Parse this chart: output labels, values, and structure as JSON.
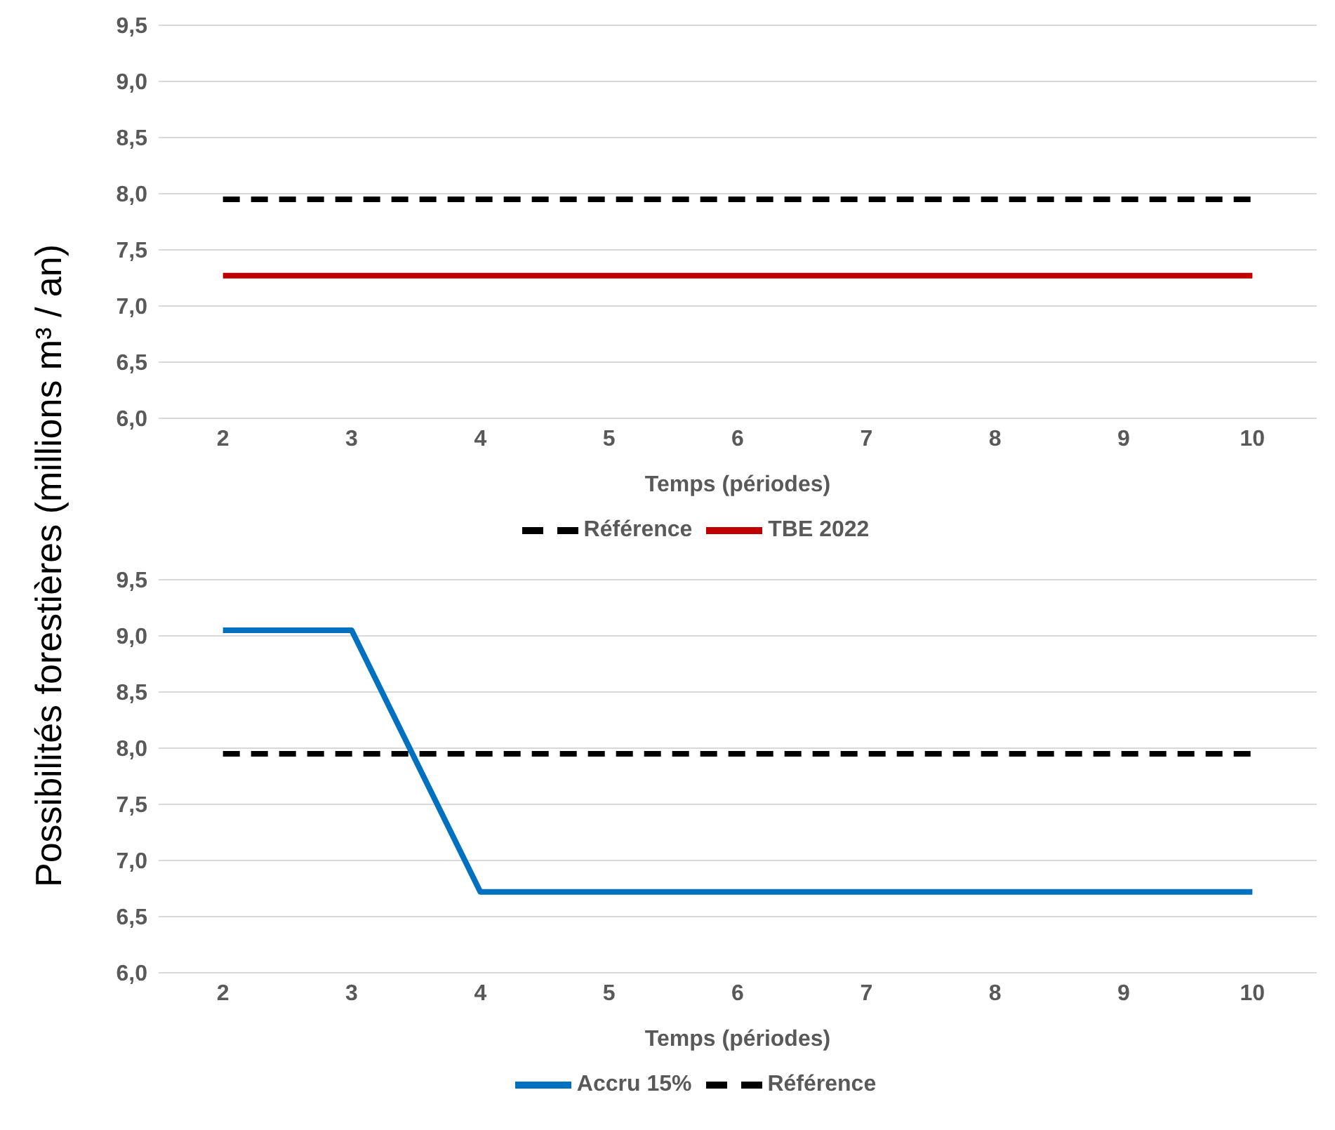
{
  "chart_data": [
    {
      "type": "line",
      "ylabel": "Possibilités forestières (millions m³ / an)",
      "xlabel": "Temps (périodes)",
      "x": [
        2,
        3,
        4,
        5,
        6,
        7,
        8,
        9,
        10
      ],
      "xlim": [
        1.5,
        10.5
      ],
      "xticks": [
        2,
        3,
        4,
        5,
        6,
        7,
        8,
        9,
        10
      ],
      "ylim": [
        6,
        9.5
      ],
      "yticks": [
        {
          "value": 6,
          "label": "6,0"
        },
        {
          "value": 6.5,
          "label": "6,5"
        },
        {
          "value": 7,
          "label": "7,0"
        },
        {
          "value": 7.5,
          "label": "7,5"
        },
        {
          "value": 8,
          "label": "8,0"
        },
        {
          "value": 8.5,
          "label": "8,5"
        },
        {
          "value": 9,
          "label": "9,0"
        },
        {
          "value": 9.5,
          "label": "9,5"
        }
      ],
      "grid": "y",
      "legend": "bottom",
      "series": [
        {
          "name": "TBE 2022",
          "color": "#c00000",
          "line_style": "solid",
          "values": [
            7.27,
            7.27,
            7.27,
            7.27,
            7.27,
            7.27,
            7.27,
            7.27,
            7.27
          ]
        },
        {
          "name": "Référence",
          "color": "#000000",
          "line_style": "dashed",
          "values": [
            7.95,
            7.95,
            7.95,
            7.95,
            7.95,
            7.95,
            7.95,
            7.95,
            7.95
          ]
        }
      ]
    },
    {
      "type": "line",
      "xlabel": "Temps (périodes)",
      "x": [
        2,
        3,
        4,
        5,
        6,
        7,
        8,
        9,
        10
      ],
      "xlim": [
        1.5,
        10.5
      ],
      "xticks": [
        2,
        3,
        4,
        5,
        6,
        7,
        8,
        9,
        10
      ],
      "ylim": [
        6,
        9.5
      ],
      "yticks": [
        {
          "value": 6,
          "label": "6,0"
        },
        {
          "value": 6.5,
          "label": "6,5"
        },
        {
          "value": 7,
          "label": "7,0"
        },
        {
          "value": 7.5,
          "label": "7,5"
        },
        {
          "value": 8,
          "label": "8,0"
        },
        {
          "value": 8.5,
          "label": "8,5"
        },
        {
          "value": 9,
          "label": "9,0"
        },
        {
          "value": 9.5,
          "label": "9,5"
        }
      ],
      "grid": "y",
      "legend": "bottom",
      "series": [
        {
          "name": "Accru 15%",
          "color": "#0070c0",
          "line_style": "solid",
          "values": [
            9.05,
            9.05,
            6.72,
            6.72,
            6.72,
            6.72,
            6.72,
            6.72,
            6.72
          ]
        },
        {
          "name": "Référence",
          "color": "#000000",
          "line_style": "dashed",
          "values": [
            7.95,
            7.95,
            7.95,
            7.95,
            7.95,
            7.95,
            7.95,
            7.95,
            7.95
          ]
        }
      ]
    }
  ]
}
